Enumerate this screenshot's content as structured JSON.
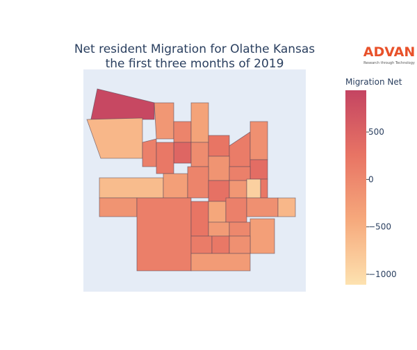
{
  "chart_data": {
    "type": "choropleth",
    "title": "Net resident Migration for Olathe Kansas",
    "subtitle": "the first three months of 2019",
    "logo": "ADVAN",
    "logo_tagline": "Research through Technology",
    "colorbar_title": "Migration Net",
    "colorscale": [
      "#fde2b0",
      "#f6a97c",
      "#e87464",
      "#c44462"
    ],
    "zlim": [
      -1110,
      940
    ],
    "zticks": [
      500,
      0,
      {
        "value": -500,
        "label": "−500"
      },
      {
        "value": -1000,
        "label": "−1000"
      }
    ],
    "values": [
      880,
      -600,
      100,
      -200,
      50,
      -350,
      450,
      200,
      -50,
      250,
      150,
      -100,
      350,
      -150,
      100,
      -650,
      -300,
      50,
      300,
      -200,
      -900,
      200,
      -150,
      120,
      250,
      -400,
      100,
      -100,
      -600,
      -250,
      0,
      -300,
      150,
      200,
      -100,
      -250
    ]
  }
}
